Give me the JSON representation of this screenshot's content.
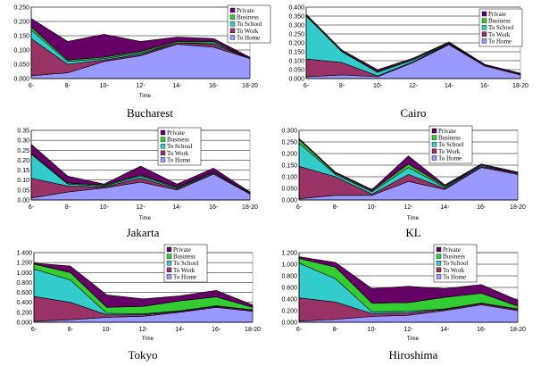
{
  "chart_data": [
    {
      "type": "area",
      "title": "Bucharest",
      "xlabel": "Time",
      "ylabel": "",
      "categories": [
        "6-",
        "8-",
        "10-",
        "12-",
        "14-",
        "16-",
        "18-20"
      ],
      "ylim": [
        0,
        0.25
      ],
      "yticks": [
        "0.000",
        "0.050",
        "0.100",
        "0.150",
        "0.200",
        "0.250"
      ],
      "ystep": 0.05,
      "series": [
        {
          "name": "To Home",
          "values": [
            0.01,
            0.02,
            0.06,
            0.08,
            0.12,
            0.11,
            0.07
          ]
        },
        {
          "name": "To Work",
          "values": [
            0.13,
            0.03,
            0.005,
            0.005,
            0.005,
            0.01,
            0.0
          ]
        },
        {
          "name": "To School",
          "values": [
            0.03,
            0.01,
            0.005,
            0.005,
            0.0,
            0.005,
            0.0
          ]
        },
        {
          "name": "Business",
          "values": [
            0.01,
            0.005,
            0.005,
            0.005,
            0.005,
            0.005,
            0.0
          ]
        },
        {
          "name": "Private",
          "values": [
            0.03,
            0.065,
            0.08,
            0.035,
            0.015,
            0.01,
            0.005
          ]
        }
      ]
    },
    {
      "type": "area",
      "title": "Cairo",
      "xlabel": "",
      "ylabel": "",
      "categories": [
        "6-",
        "8-",
        "10-",
        "12-",
        "14-",
        "16-",
        "18-20"
      ],
      "ylim": [
        0,
        0.4
      ],
      "yticks": [
        "0.000",
        "0.050",
        "0.100",
        "0.150",
        "0.200",
        "0.250",
        "0.300",
        "0.350",
        "0.400"
      ],
      "ystep": 0.05,
      "series": [
        {
          "name": "To Home",
          "values": [
            0.01,
            0.02,
            0.01,
            0.09,
            0.19,
            0.07,
            0.02
          ]
        },
        {
          "name": "To Work",
          "values": [
            0.1,
            0.07,
            0.005,
            0.005,
            0.005,
            0.005,
            0.005
          ]
        },
        {
          "name": "To School",
          "values": [
            0.24,
            0.06,
            0.02,
            0.01,
            0.0,
            0.0,
            0.0
          ]
        },
        {
          "name": "Business",
          "values": [
            0.005,
            0.005,
            0.005,
            0.005,
            0.005,
            0.0,
            0.0
          ]
        },
        {
          "name": "Private",
          "values": [
            0.005,
            0.005,
            0.01,
            0.005,
            0.005,
            0.005,
            0.005
          ]
        }
      ]
    },
    {
      "type": "area",
      "title": "Jakarta",
      "xlabel": "Time",
      "ylabel": "",
      "categories": [
        "6-",
        "8-",
        "10-",
        "12-",
        "14-",
        "16-",
        "18-20"
      ],
      "ylim": [
        0,
        0.35
      ],
      "yticks": [
        "0.00",
        "0.05",
        "0.10",
        "0.15",
        "0.20",
        "0.25",
        "0.30",
        "0.35"
      ],
      "ystep": 0.05,
      "series": [
        {
          "name": "To Home",
          "values": [
            0.01,
            0.04,
            0.06,
            0.09,
            0.05,
            0.13,
            0.03
          ]
        },
        {
          "name": "To Work",
          "values": [
            0.1,
            0.03,
            0.005,
            0.02,
            0.005,
            0.005,
            0.005
          ]
        },
        {
          "name": "To School",
          "values": [
            0.12,
            0.01,
            0.005,
            0.01,
            0.005,
            0.005,
            0.0
          ]
        },
        {
          "name": "Business",
          "values": [
            0.005,
            0.005,
            0.005,
            0.005,
            0.005,
            0.0,
            0.0
          ]
        },
        {
          "name": "Private",
          "values": [
            0.045,
            0.035,
            0.005,
            0.045,
            0.015,
            0.02,
            0.005
          ]
        }
      ]
    },
    {
      "type": "area",
      "title": "KL",
      "xlabel": "Time",
      "ylabel": "",
      "categories": [
        "6-",
        "8-",
        "10-",
        "12-",
        "14-",
        "16-",
        "18-20"
      ],
      "ylim": [
        0,
        0.3
      ],
      "yticks": [
        "0.000",
        "0.050",
        "0.100",
        "0.150",
        "0.200",
        "0.250",
        "0.300"
      ],
      "ystep": 0.05,
      "series": [
        {
          "name": "To Home",
          "values": [
            0.005,
            0.02,
            0.02,
            0.08,
            0.045,
            0.14,
            0.11
          ]
        },
        {
          "name": "To Work",
          "values": [
            0.14,
            0.08,
            0.005,
            0.03,
            0.005,
            0.005,
            0.005
          ]
        },
        {
          "name": "To School",
          "values": [
            0.1,
            0.01,
            0.01,
            0.03,
            0.005,
            0.005,
            0.0
          ]
        },
        {
          "name": "Business",
          "values": [
            0.015,
            0.005,
            0.005,
            0.015,
            0.005,
            0.0,
            0.0
          ]
        },
        {
          "name": "Private",
          "values": [
            0.005,
            0.005,
            0.005,
            0.035,
            0.005,
            0.005,
            0.005
          ]
        }
      ]
    },
    {
      "type": "area",
      "title": "Tokyo",
      "xlabel": "Time",
      "ylabel": "",
      "categories": [
        "6-",
        "8-",
        "10-",
        "12-",
        "14-",
        "16-",
        "18-20"
      ],
      "ylim": [
        0,
        1.4
      ],
      "yticks": [
        "0.000",
        "0.200",
        "0.400",
        "0.600",
        "0.800",
        "1.000",
        "1.200",
        "1.400"
      ],
      "ystep": 0.2,
      "series": [
        {
          "name": "To Home",
          "values": [
            0.02,
            0.05,
            0.1,
            0.12,
            0.2,
            0.3,
            0.22
          ]
        },
        {
          "name": "To Work",
          "values": [
            0.5,
            0.35,
            0.05,
            0.03,
            0.02,
            0.02,
            0.02
          ]
        },
        {
          "name": "To School",
          "values": [
            0.55,
            0.45,
            0.03,
            0.02,
            0.01,
            0.01,
            0.01
          ]
        },
        {
          "name": "Business",
          "values": [
            0.1,
            0.15,
            0.12,
            0.15,
            0.2,
            0.18,
            0.05
          ]
        },
        {
          "name": "Private",
          "values": [
            0.02,
            0.13,
            0.25,
            0.15,
            0.1,
            0.13,
            0.05
          ]
        }
      ]
    },
    {
      "type": "area",
      "title": "Hiroshima",
      "xlabel": "Time",
      "ylabel": "",
      "categories": [
        "6-",
        "8-",
        "10-",
        "12-",
        "14-",
        "16-",
        "18-20"
      ],
      "ylim": [
        0,
        1.2
      ],
      "yticks": [
        "0.000",
        "0.200",
        "0.400",
        "0.600",
        "0.800",
        "1.000",
        "1.200"
      ],
      "ystep": 0.2,
      "series": [
        {
          "name": "To Home",
          "values": [
            0.02,
            0.05,
            0.1,
            0.12,
            0.2,
            0.3,
            0.2
          ]
        },
        {
          "name": "To Work",
          "values": [
            0.4,
            0.3,
            0.05,
            0.04,
            0.02,
            0.02,
            0.02
          ]
        },
        {
          "name": "To School",
          "values": [
            0.6,
            0.4,
            0.03,
            0.03,
            0.01,
            0.01,
            0.01
          ]
        },
        {
          "name": "Business",
          "values": [
            0.08,
            0.2,
            0.15,
            0.15,
            0.2,
            0.17,
            0.05
          ]
        },
        {
          "name": "Private",
          "values": [
            0.03,
            0.08,
            0.25,
            0.28,
            0.15,
            0.15,
            0.1
          ]
        }
      ]
    }
  ],
  "legend_labels": [
    "Private",
    "Business",
    "To School",
    "To Work",
    "To Home"
  ],
  "colors": {
    "To Home": "#9999ff",
    "To Work": "#993366",
    "To School": "#33cccc",
    "Business": "#33cc33",
    "Private": "#660066"
  }
}
